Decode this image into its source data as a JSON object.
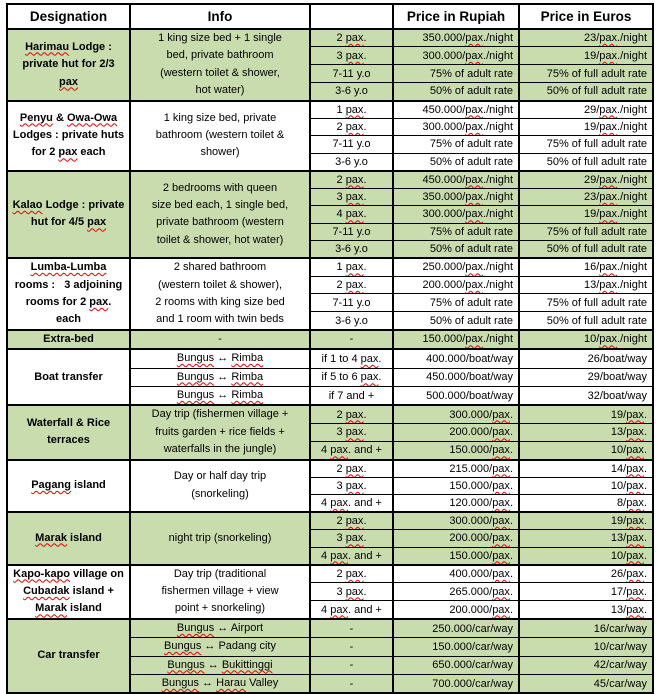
{
  "table": {
    "headers": [
      "Designation",
      "Info",
      "",
      "Price in Rupiah",
      "Price in Euros"
    ],
    "colors": {
      "row_shaded": "#c9dcae",
      "row_plain": "#ffffff",
      "border": "#000000",
      "squiggle": "#e80000",
      "text": "#000000"
    },
    "spellcheck_flagged_words": [
      "Harimau",
      "Penyu",
      "Owa-Owa",
      "Kalao",
      "Lumba-Lumba",
      "Bungus",
      "Rimba",
      "Pagang",
      "Marak",
      "Kapo-kapo",
      "Cubadak",
      "Bukittinggi",
      "Harau",
      "pax"
    ],
    "groups": [
      {
        "designation": "Harimau Lodge :\nprivate hut for 2/3\npax",
        "info": "1 king size bed + 1 single\nbed, private bathroom\n(western toilet & shower,\nhot water)",
        "shaded": true,
        "rows": [
          {
            "qty": "2 pax.",
            "rupiah": "350.000/pax./night",
            "euros": "23/pax./night"
          },
          {
            "qty": "3 pax.",
            "rupiah": "300.000/pax./night",
            "euros": "19/pax./night"
          },
          {
            "qty": "7-11 y.o",
            "rupiah": "75% of adult rate",
            "euros": "75% of full adult rate"
          },
          {
            "qty": "3-6 y.o",
            "rupiah": "50% of adult rate",
            "euros": "50% of full adult rate"
          }
        ]
      },
      {
        "designation": "Penyu & Owa-Owa\nLodges : private huts\nfor 2 pax each",
        "info": "1 king size bed, private\nbathroom (western toilet &\nshower)",
        "shaded": false,
        "rows": [
          {
            "qty": "1 pax.",
            "rupiah": "450.000/pax./night",
            "euros": "29/pax./night"
          },
          {
            "qty": "2 pax.",
            "rupiah": "300.000/pax./night",
            "euros": "19/pax./night"
          },
          {
            "qty": "7-11 y.o",
            "rupiah": "75% of adult rate",
            "euros": "75% of full adult rate"
          },
          {
            "qty": "3-6 y.o",
            "rupiah": "50% of adult rate",
            "euros": "50% of full adult rate"
          }
        ]
      },
      {
        "designation": "Kalao Lodge : private\nhut for 4/5 pax",
        "info": "2 bedrooms with queen\nsize bed each, 1 single bed,\nprivate bathroom (western\ntoilet & shower, hot water)",
        "shaded": true,
        "rows": [
          {
            "qty": "2 pax.",
            "rupiah": "450.000/pax./night",
            "euros": "29/pax./night"
          },
          {
            "qty": "3 pax.",
            "rupiah": "350.000/pax./night",
            "euros": "23/pax./night"
          },
          {
            "qty": "4 pax.",
            "rupiah": "300.000/pax./night",
            "euros": "19/pax./night"
          },
          {
            "qty": "7-11 y.o",
            "rupiah": "75% of adult rate",
            "euros": "75% of full adult rate"
          },
          {
            "qty": "3-6 y.o",
            "rupiah": "50% of adult rate",
            "euros": "50% of full adult rate"
          }
        ]
      },
      {
        "designation": "Lumba-Lumba\nrooms :   3 adjoining\nrooms for 2 pax.\neach",
        "info": "2 shared bathroom\n(western toilet & shower),\n2 rooms with king size bed\nand 1 room with twin beds",
        "shaded": false,
        "rows": [
          {
            "qty": "1 pax.",
            "rupiah": "250.000/pax./night",
            "euros": "16/pax./night"
          },
          {
            "qty": "2 pax.",
            "rupiah": "200.000/pax./night",
            "euros": "13/pax./night"
          },
          {
            "qty": "7-11 y.o",
            "rupiah": "75% of adult rate",
            "euros": "75% of full adult rate"
          },
          {
            "qty": "3-6 y.o",
            "rupiah": "50% of adult rate",
            "euros": "50% of full adult rate"
          }
        ]
      },
      {
        "designation": "Extra-bed",
        "info": "-",
        "shaded": true,
        "rows": [
          {
            "qty": "-",
            "rupiah": "150.000/pax./night",
            "euros": "10/pax./night"
          }
        ]
      },
      {
        "designation": "Boat transfer",
        "info": null,
        "shaded": false,
        "rows": [
          {
            "info": "Bungus ↔ Rimba",
            "qty": "if 1 to 4 pax.",
            "rupiah": "400.000/boat/way",
            "euros": "26/boat/way"
          },
          {
            "info": "Bungus ↔ Rimba",
            "qty": "if 5 to 6 pax.",
            "rupiah": "450.000/boat/way",
            "euros": "29/boat/way"
          },
          {
            "info": "Bungus ↔ Rimba",
            "qty": "if 7 and +",
            "rupiah": "500.000/boat/way",
            "euros": "32/boat/way"
          }
        ]
      },
      {
        "designation": "Waterfall & Rice\nterraces",
        "info": "Day trip (fishermen village +\nfruits garden + rice fields +\nwaterfalls in the jungle)",
        "shaded": true,
        "rows": [
          {
            "qty": "2 pax.",
            "rupiah": "300.000/pax.",
            "euros": "19/pax."
          },
          {
            "qty": "3 pax.",
            "rupiah": "200.000/pax.",
            "euros": "13/pax."
          },
          {
            "qty": "4 pax. and +",
            "rupiah": "150.000/pax.",
            "euros": "10/pax."
          }
        ]
      },
      {
        "designation": "Pagang island",
        "info": "Day or half day trip\n(snorkeling)",
        "shaded": false,
        "rows": [
          {
            "qty": "2 pax.",
            "rupiah": "215.000/pax.",
            "euros": "14/pax."
          },
          {
            "qty": "3 pax.",
            "rupiah": "150.000/pax.",
            "euros": "10/pax."
          },
          {
            "qty": "4 pax. and +",
            "rupiah": "120.000/pax.",
            "euros": "8/pax."
          }
        ]
      },
      {
        "designation": "Marak island",
        "info": "night trip (snorkeling)",
        "shaded": true,
        "rows": [
          {
            "qty": "2 pax.",
            "rupiah": "300.000/pax.",
            "euros": "19/pax."
          },
          {
            "qty": "3 pax.",
            "rupiah": "200.000/pax.",
            "euros": "13/pax."
          },
          {
            "qty": "4 pax. and +",
            "rupiah": "150.000/pax.",
            "euros": "10/pax."
          }
        ]
      },
      {
        "designation": "Kapo-kapo village on\nCubadak island +\nMarak island",
        "info": "Day trip (traditional\nfishermen village + view\npoint + snorkeling)",
        "shaded": false,
        "rows": [
          {
            "qty": "2 pax.",
            "rupiah": "400.000/pax.",
            "euros": "26/pax."
          },
          {
            "qty": "3 pax.",
            "rupiah": "265.000/pax.",
            "euros": "17/pax."
          },
          {
            "qty": "4 pax. and +",
            "rupiah": "200.000/pax.",
            "euros": "13/pax."
          }
        ]
      },
      {
        "designation": "Car transfer",
        "info": null,
        "shaded": true,
        "rows": [
          {
            "info": "Bungus ↔ Airport",
            "qty": "-",
            "rupiah": "250.000/car/way",
            "euros": "16/car/way"
          },
          {
            "info": "Bungus ↔ Padang city",
            "qty": "-",
            "rupiah": "150.000/car/way",
            "euros": "10/car/way"
          },
          {
            "info": "Bungus ↔ Bukittinggi",
            "qty": "-",
            "rupiah": "650.000/car/way",
            "euros": "42/car/way"
          },
          {
            "info": "Bungus ↔ Harau Valley",
            "qty": "-",
            "rupiah": "700.000/car/way",
            "euros": "45/car/way"
          }
        ]
      }
    ]
  }
}
